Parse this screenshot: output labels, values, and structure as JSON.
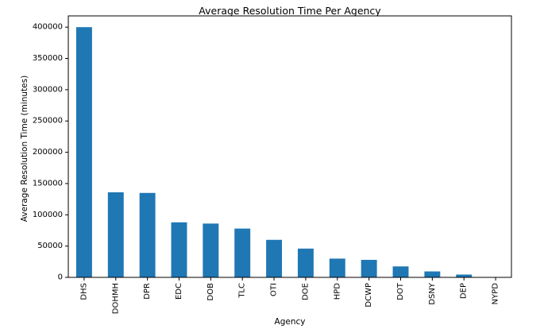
{
  "chart_data": {
    "type": "bar",
    "title": "Average Resolution Time Per Agency",
    "xlabel": "Agency",
    "ylabel": "Average Resolution Time (minutes)",
    "categories": [
      "DHS",
      "DOHMH",
      "DPR",
      "EDC",
      "DOB",
      "TLC",
      "OTI",
      "DOE",
      "HPD",
      "DCWP",
      "DOT",
      "DSNY",
      "DEP",
      "NYPD"
    ],
    "values": [
      400000,
      136000,
      135000,
      88000,
      86000,
      78000,
      60000,
      46000,
      30000,
      28000,
      17500,
      9500,
      4500,
      200
    ],
    "ylim": [
      0,
      418000
    ],
    "yticks": [
      0,
      50000,
      100000,
      150000,
      200000,
      250000,
      300000,
      350000,
      400000
    ],
    "grid": false,
    "legend": "none",
    "bar_color": "#1f77b4"
  }
}
